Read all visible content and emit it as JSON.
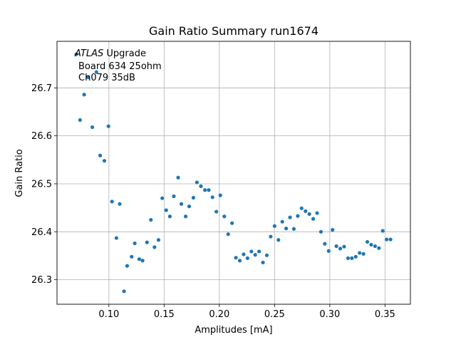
{
  "chart_data": {
    "type": "scatter",
    "title": "Gain Ratio Summary run1674",
    "xlabel": "Amplitudes [mA]",
    "ylabel": "Gain Ratio",
    "xlim": [
      0.053,
      0.373
    ],
    "ylim": [
      26.249,
      26.797
    ],
    "xticks": [
      0.1,
      0.15,
      0.2,
      0.25,
      0.3,
      0.35
    ],
    "xtick_labels": [
      "0.10",
      "0.15",
      "0.20",
      "0.25",
      "0.30",
      "0.35"
    ],
    "yticks": [
      26.3,
      26.4,
      26.5,
      26.6,
      26.7
    ],
    "ytick_labels": [
      "26.3",
      "26.4",
      "26.5",
      "26.6",
      "26.7"
    ],
    "grid": true,
    "marker_color": "#1f77b4",
    "annotation": {
      "line1_italic": "ATLAS",
      "line1_rest": " Upgrade",
      "line2": "Board 634 25ohm",
      "line3": "Ch079 35dB"
    },
    "x": [
      0.0705,
      0.0739,
      0.0776,
      0.0811,
      0.085,
      0.0887,
      0.0921,
      0.0959,
      0.0996,
      0.1028,
      0.1068,
      0.1098,
      0.1137,
      0.1165,
      0.1206,
      0.1234,
      0.1275,
      0.1305,
      0.1345,
      0.138,
      0.1413,
      0.1449,
      0.1483,
      0.1519,
      0.1552,
      0.1588,
      0.1627,
      0.1656,
      0.1695,
      0.1727,
      0.1765,
      0.1797,
      0.1833,
      0.187,
      0.1904,
      0.1938,
      0.1973,
      0.2009,
      0.2045,
      0.208,
      0.2115,
      0.215,
      0.2185,
      0.222,
      0.2255,
      0.229,
      0.2325,
      0.236,
      0.2395,
      0.243,
      0.2465,
      0.25,
      0.2535,
      0.257,
      0.2605,
      0.264,
      0.2675,
      0.271,
      0.2745,
      0.278,
      0.2815,
      0.285,
      0.2885,
      0.292,
      0.2955,
      0.299,
      0.3025,
      0.306,
      0.3095,
      0.313,
      0.3165,
      0.32,
      0.3235,
      0.327,
      0.3305,
      0.334,
      0.3375,
      0.341,
      0.3445,
      0.348,
      0.3515,
      0.355
    ],
    "y": [
      26.77,
      26.633,
      26.686,
      26.722,
      26.618,
      26.733,
      26.559,
      26.548,
      26.62,
      26.463,
      26.387,
      26.458,
      26.276,
      26.329,
      26.348,
      26.376,
      26.343,
      26.34,
      26.378,
      26.425,
      26.368,
      26.383,
      26.47,
      26.445,
      26.432,
      26.474,
      26.513,
      26.458,
      26.432,
      26.453,
      26.471,
      26.503,
      26.495,
      26.487,
      26.487,
      26.472,
      26.442,
      26.476,
      26.432,
      26.395,
      26.418,
      26.346,
      26.34,
      26.353,
      26.345,
      26.359,
      26.352,
      26.359,
      26.336,
      26.351,
      26.39,
      26.412,
      26.383,
      26.421,
      26.407,
      26.43,
      26.406,
      26.433,
      26.449,
      26.443,
      26.437,
      26.427,
      26.439,
      26.4,
      26.375,
      26.36,
      26.404,
      26.37,
      26.365,
      26.369,
      26.345,
      26.345,
      26.348,
      26.356,
      26.354,
      26.379,
      26.373,
      26.37,
      26.366,
      26.402,
      26.384,
      26.384
    ]
  }
}
